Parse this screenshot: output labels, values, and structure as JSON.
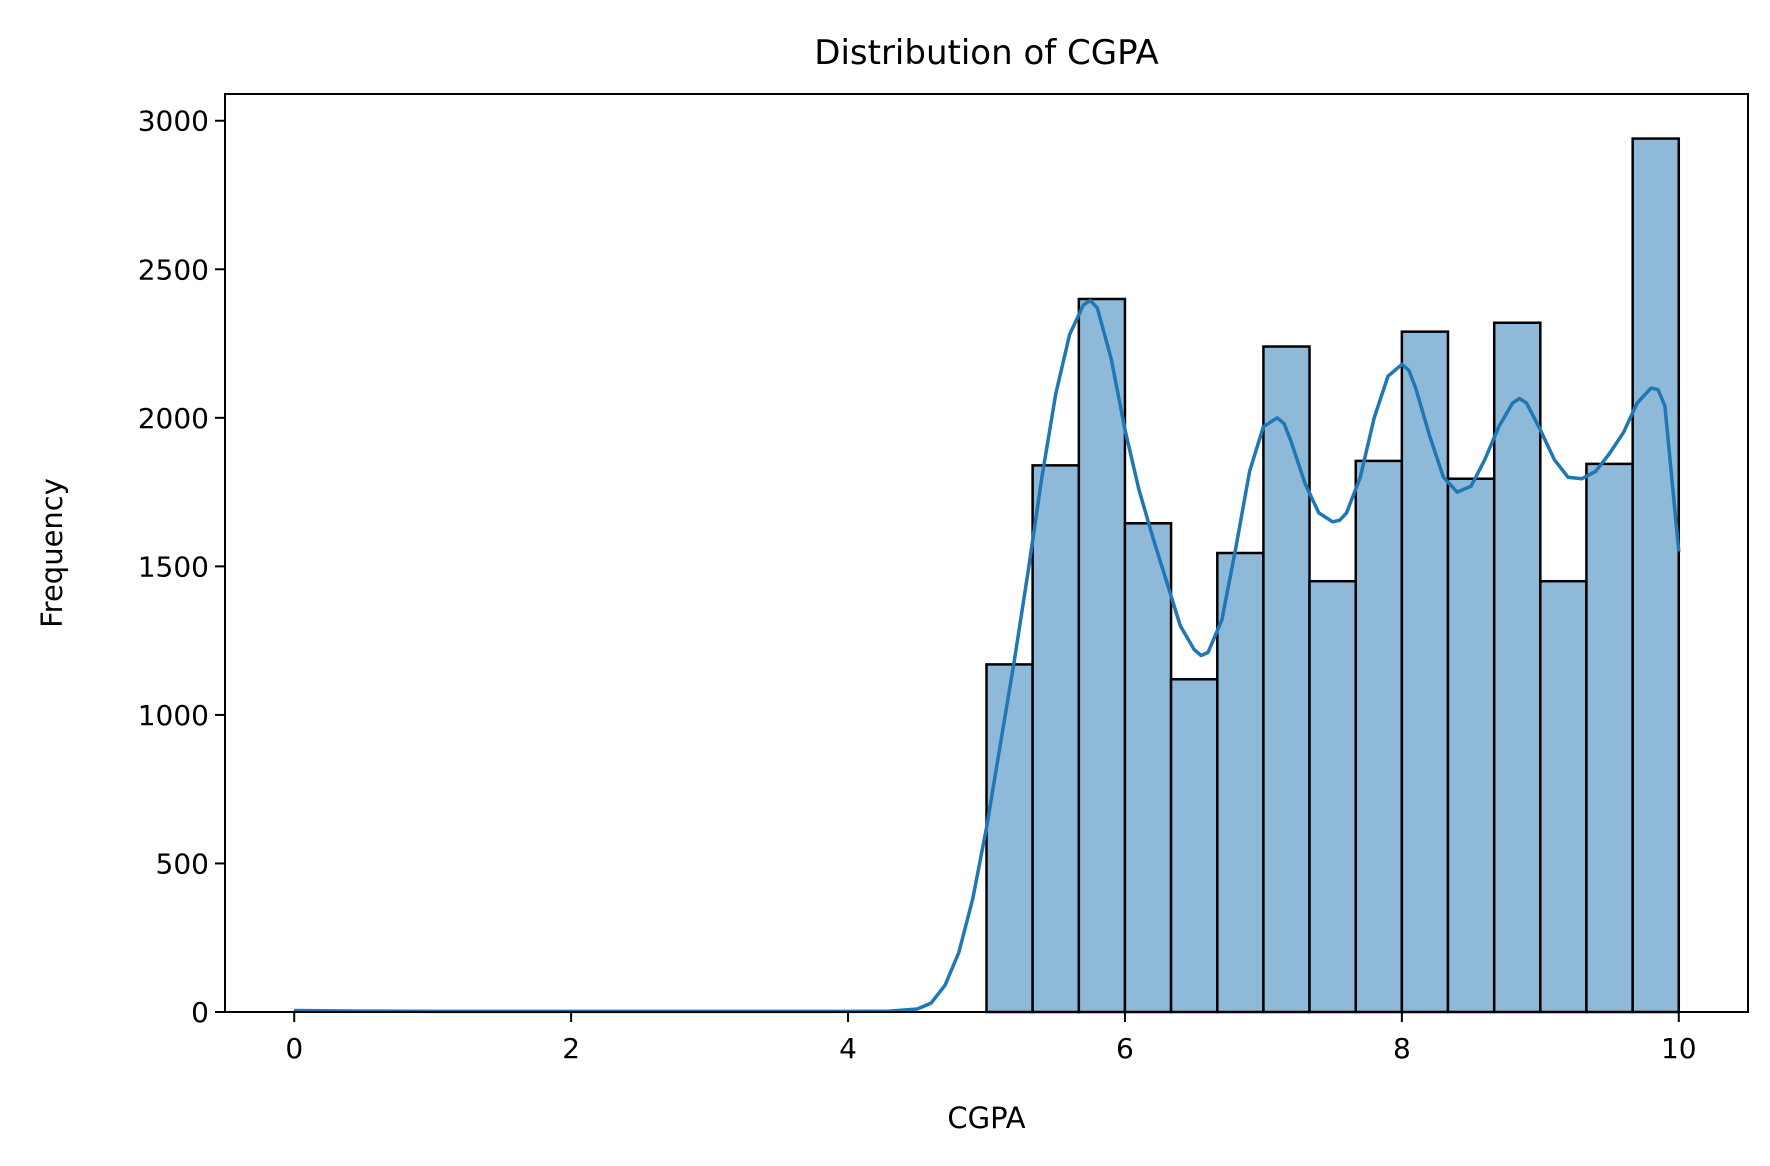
{
  "chart_data": {
    "type": "bar",
    "title": "Distribution of CGPA",
    "xlabel": "CGPA",
    "ylabel": "Frequency",
    "xlim": [
      -0.5,
      10.5
    ],
    "ylim": [
      0,
      3090
    ],
    "xticks": [
      0,
      2,
      4,
      6,
      8,
      10
    ],
    "yticks": [
      0,
      500,
      1000,
      1500,
      2000,
      2500,
      3000
    ],
    "grid": false,
    "legend": "none",
    "bin_width": 0.3333,
    "bins": [
      {
        "x0": 0.0,
        "x1": 0.333,
        "count": 5
      },
      {
        "x0": 5.0,
        "x1": 5.333,
        "count": 1170
      },
      {
        "x0": 5.333,
        "x1": 5.667,
        "count": 1840
      },
      {
        "x0": 5.667,
        "x1": 6.0,
        "count": 2400
      },
      {
        "x0": 6.0,
        "x1": 6.333,
        "count": 1645
      },
      {
        "x0": 6.333,
        "x1": 6.667,
        "count": 1120
      },
      {
        "x0": 6.667,
        "x1": 7.0,
        "count": 1545
      },
      {
        "x0": 7.0,
        "x1": 7.333,
        "count": 2240
      },
      {
        "x0": 7.333,
        "x1": 7.667,
        "count": 1450
      },
      {
        "x0": 7.667,
        "x1": 8.0,
        "count": 1855
      },
      {
        "x0": 8.0,
        "x1": 8.333,
        "count": 2290
      },
      {
        "x0": 8.333,
        "x1": 8.667,
        "count": 1795
      },
      {
        "x0": 8.667,
        "x1": 9.0,
        "count": 2320
      },
      {
        "x0": 9.0,
        "x1": 9.333,
        "count": 1450
      },
      {
        "x0": 9.333,
        "x1": 9.667,
        "count": 1845
      },
      {
        "x0": 9.667,
        "x1": 10.0,
        "count": 2940
      }
    ],
    "kde": {
      "x": [
        0,
        0.5,
        1,
        2,
        3,
        4,
        4.3,
        4.5,
        4.6,
        4.7,
        4.8,
        4.9,
        5.0,
        5.1,
        5.2,
        5.3,
        5.4,
        5.5,
        5.6,
        5.7,
        5.75,
        5.8,
        5.9,
        6.0,
        6.1,
        6.2,
        6.3,
        6.4,
        6.5,
        6.55,
        6.6,
        6.7,
        6.8,
        6.9,
        7.0,
        7.1,
        7.15,
        7.2,
        7.3,
        7.4,
        7.5,
        7.55,
        7.6,
        7.7,
        7.8,
        7.9,
        8.0,
        8.05,
        8.1,
        8.2,
        8.3,
        8.4,
        8.5,
        8.6,
        8.7,
        8.8,
        8.85,
        8.9,
        9.0,
        9.1,
        9.2,
        9.3,
        9.4,
        9.5,
        9.6,
        9.7,
        9.8,
        9.85,
        9.9,
        10.0
      ],
      "y": [
        5,
        3,
        2,
        2,
        2,
        2,
        3,
        10,
        30,
        90,
        200,
        380,
        620,
        900,
        1180,
        1480,
        1800,
        2080,
        2280,
        2380,
        2395,
        2370,
        2200,
        1960,
        1760,
        1600,
        1450,
        1300,
        1220,
        1200,
        1210,
        1320,
        1560,
        1820,
        1970,
        2000,
        1980,
        1920,
        1780,
        1680,
        1650,
        1655,
        1680,
        1800,
        2000,
        2140,
        2180,
        2160,
        2100,
        1940,
        1800,
        1750,
        1770,
        1860,
        1970,
        2050,
        2065,
        2050,
        1960,
        1860,
        1800,
        1795,
        1820,
        1880,
        1950,
        2050,
        2100,
        2095,
        2040,
        1550
      ]
    },
    "colors": {
      "bar_fill": "#8fb9d9",
      "bar_edge": "#000000",
      "kde_line": "#1f77b4"
    }
  }
}
